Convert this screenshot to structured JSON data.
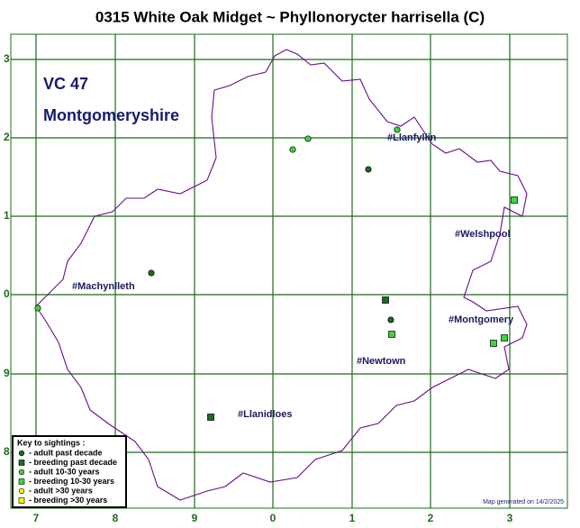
{
  "title": "0315 White Oak Midget ~ Phyllonorycter harrisella (C)",
  "region": {
    "code": "VC 47",
    "name": "Montgomeryshire"
  },
  "grid": {
    "x_labels": [
      "7",
      "8",
      "9",
      "0",
      "1",
      "2",
      "3"
    ],
    "y_labels": [
      "3",
      "2",
      "1",
      "0",
      "9",
      "8"
    ]
  },
  "towns": [
    "#Llanfyllin",
    "#Welshpool",
    "#Machynlleth",
    "#Montgomery",
    "#Newtown",
    "#Llanidloes"
  ],
  "key": {
    "title": "Key to sightings :",
    "items": [
      "- adult past decade",
      "- breeding past decade",
      "- adult 10-30 years",
      "- breeding 10-30 years",
      "- adult >30 years",
      "- breeding >30 years"
    ]
  },
  "footer": "Map generated on 14/2/2025"
}
